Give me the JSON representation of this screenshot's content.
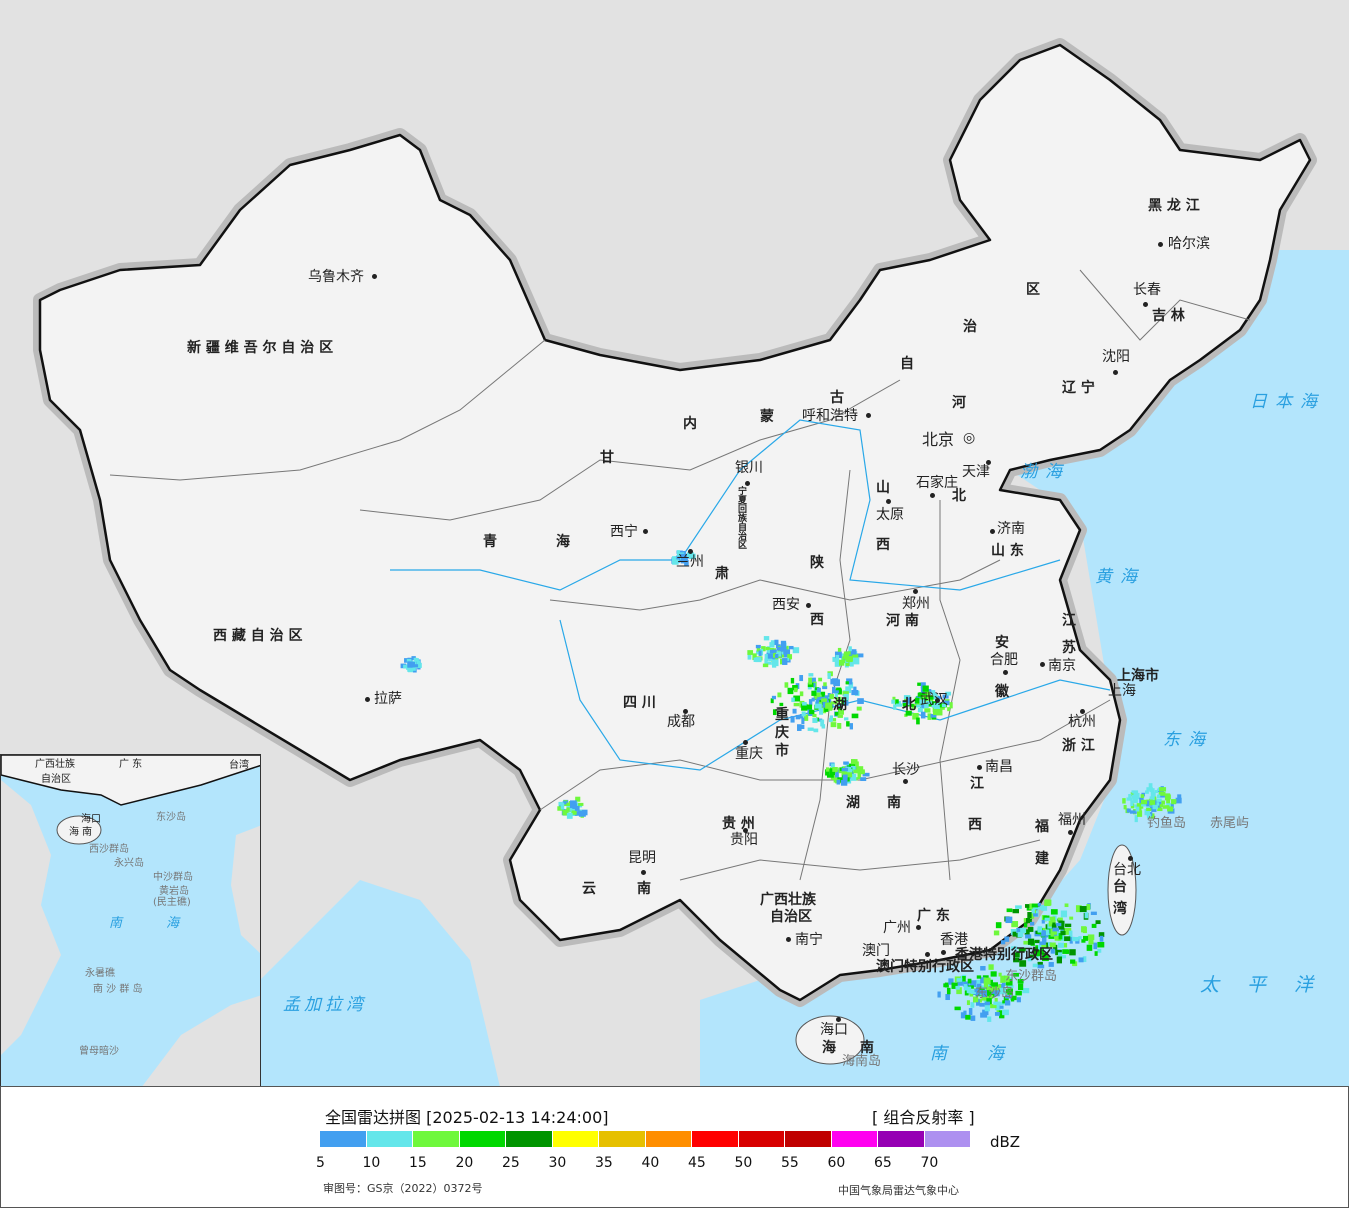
{
  "map": {
    "provinces": [
      "新 疆 维 吾 尔 自 治 区",
      "西 藏 自 治 区",
      "青",
      "海",
      "甘",
      "肃",
      "内",
      "蒙",
      "古",
      "自",
      "治",
      "区",
      "黑 龙 江",
      "吉 林",
      "辽 宁",
      "河",
      "北",
      "山",
      "西",
      "山 东",
      "河 南",
      "陕",
      "西",
      "四 川",
      "湖",
      "北",
      "湖",
      "南",
      "安",
      "徽",
      "江",
      "苏",
      "上海市",
      "浙 江",
      "江",
      "西",
      "福",
      "建",
      "贵 州",
      "云",
      "南",
      "广西壮族",
      "自治区",
      "广 东",
      "海",
      "南",
      "台",
      "湾",
      "宁夏回族自治区",
      "重",
      "庆",
      "市",
      "香港特别行政区",
      "澳门特别行政区"
    ],
    "cities": [
      "乌鲁木齐",
      "拉萨",
      "西宁",
      "兰州",
      "银川",
      "呼和浩特",
      "北京",
      "天津",
      "石家庄",
      "太原",
      "济南",
      "郑州",
      "西安",
      "合肥",
      "南京",
      "上海",
      "杭州",
      "武汉",
      "成都",
      "重庆",
      "长沙",
      "南昌",
      "福州",
      "贵阳",
      "昆明",
      "南宁",
      "广州",
      "澳门",
      "香港",
      "海口",
      "台北",
      "长春",
      "沈阳",
      "哈尔滨"
    ],
    "seas": [
      "日本海",
      "渤海",
      "黄海",
      "东海",
      "太平洋",
      "南海",
      "孟加拉湾"
    ],
    "islands": [
      "钓鱼岛",
      "赤尾屿",
      "东沙群岛",
      "东沙岛",
      "海南岛"
    ],
    "capital_icon": "star-circle-icon",
    "colors": {
      "land": "#f3f3f3",
      "sea": "#b3e5fc",
      "foreign": "#e2e2e2",
      "border": "#111",
      "river": "#29a8e8"
    }
  },
  "inset": {
    "labels": [
      "广西壮族",
      "自治区",
      "广 东",
      "台湾",
      "海口",
      "海 南",
      "西沙群岛",
      "永兴岛",
      "中沙群岛",
      "黄岩岛",
      "(民主礁)",
      "南 海",
      "永暑礁",
      "南 沙 群 岛",
      "曾母暗沙",
      "东沙岛"
    ]
  },
  "legend": {
    "title": "全国雷达拼图 [2025-02-13 14:24:00]",
    "product": "[ 组合反射率 ]",
    "unit": "dBZ",
    "ticks": [
      "5",
      "10",
      "15",
      "20",
      "25",
      "30",
      "35",
      "40",
      "45",
      "50",
      "55",
      "60",
      "65",
      "70"
    ],
    "colors": [
      "#429ff0",
      "#64e6ea",
      "#6ff83c",
      "#00d800",
      "#009400",
      "#ffff00",
      "#e6c000",
      "#ff8e00",
      "#ff0000",
      "#d80000",
      "#c00000",
      "#ff00f0",
      "#9600b4",
      "#ad90f0"
    ],
    "approval": "审图号：GS京（2022）0372号",
    "credit": "中国气象局雷达气象中心"
  }
}
